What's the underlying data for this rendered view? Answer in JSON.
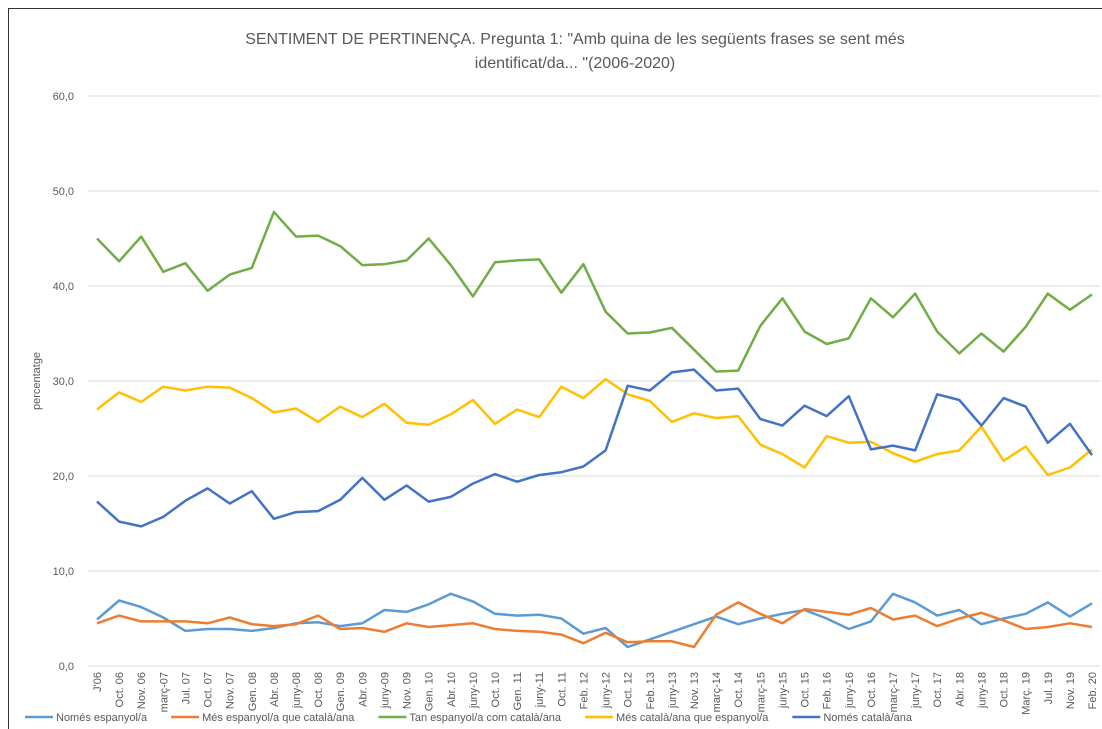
{
  "chart_data": {
    "type": "line",
    "title": [
      "SENTIMENT DE PERTINENÇA. Pregunta 1: \"Amb quina de les següents frases se sent més",
      "identificat/da... \"(2006-2020)"
    ],
    "ylabel": "percentatge",
    "categories": [
      "J'06",
      "Oct. 06",
      "Nov. 06",
      "març-07",
      "Jul. 07",
      "Oct. 07",
      "Nov. 07",
      "Gen. 08",
      "Abr. 08",
      "juny-08",
      "Oct. 08",
      "Gen. 09",
      "Abr. 09",
      "juny-09",
      "Nov. 09",
      "Gen. 10",
      "Abr. 10",
      "juny-10",
      "Oct. 10",
      "Gen. 11",
      "juny-11",
      "Oct. 11",
      "Feb. 12",
      "juny-12",
      "Oct. 12",
      "Feb. 13",
      "juny-13",
      "Nov. 13",
      "març-14",
      "Oct. 14",
      "març-15",
      "juny-15",
      "Oct. 15",
      "Feb. 16",
      "juny-16",
      "Oct. 16",
      "març-17",
      "juny-17",
      "Oct. 17",
      "Abr. 18",
      "juny-18",
      "Oct. 18",
      "Març. 19",
      "Jul. 19",
      "Nov. 19",
      "Feb. 20"
    ],
    "series": [
      {
        "name": "Només espanyol/a",
        "color": "#5b9bd5",
        "values": [
          4.9,
          6.9,
          6.2,
          5.1,
          3.7,
          3.9,
          3.9,
          3.7,
          4.0,
          4.5,
          4.6,
          4.2,
          4.5,
          5.9,
          5.7,
          6.5,
          7.6,
          6.8,
          5.5,
          5.3,
          5.4,
          5.0,
          3.4,
          4.0,
          2.0,
          2.8,
          3.6,
          4.4,
          5.2,
          4.4,
          5.0,
          5.5,
          5.9,
          5.0,
          3.9,
          4.7,
          7.6,
          6.7,
          5.3,
          5.9,
          4.4,
          5.0,
          5.5,
          6.7,
          5.2,
          6.6
        ]
      },
      {
        "name": "Més espanyol/a que català/ana",
        "color": "#ed7d31",
        "values": [
          4.5,
          5.3,
          4.7,
          4.7,
          4.7,
          4.5,
          5.1,
          4.4,
          4.2,
          4.4,
          5.3,
          3.9,
          4.0,
          3.6,
          4.5,
          4.1,
          4.3,
          4.5,
          3.9,
          3.7,
          3.6,
          3.3,
          2.4,
          3.5,
          2.5,
          2.6,
          2.6,
          2.0,
          5.4,
          6.7,
          5.5,
          4.5,
          6.0,
          5.7,
          5.4,
          6.1,
          4.9,
          5.3,
          4.2,
          5.0,
          5.6,
          4.8,
          3.9,
          4.1,
          4.5,
          4.1
        ]
      },
      {
        "name": "Tan espanyol/a com català/ana",
        "color": "#70ad47",
        "values": [
          45.0,
          42.6,
          45.2,
          41.5,
          42.4,
          39.5,
          41.2,
          41.9,
          47.8,
          45.2,
          45.3,
          44.2,
          42.2,
          42.3,
          42.7,
          45.0,
          42.2,
          38.9,
          42.5,
          42.7,
          42.8,
          39.3,
          42.3,
          37.3,
          35.0,
          35.1,
          35.6,
          33.3,
          31.0,
          31.1,
          35.8,
          38.7,
          35.2,
          33.9,
          34.5,
          38.7,
          36.7,
          39.2,
          35.2,
          32.9,
          35.0,
          33.1,
          35.7,
          39.2,
          37.5,
          39.1
        ]
      },
      {
        "name": "Més català/ana que espanyol/a",
        "color": "#ffc000",
        "values": [
          27.0,
          28.8,
          27.8,
          29.4,
          29.0,
          29.4,
          29.3,
          28.2,
          26.7,
          27.1,
          25.7,
          27.3,
          26.2,
          27.6,
          25.6,
          25.4,
          26.5,
          28.0,
          25.5,
          27.0,
          26.2,
          29.4,
          28.2,
          30.2,
          28.6,
          27.9,
          25.7,
          26.6,
          26.1,
          26.3,
          23.3,
          22.3,
          20.9,
          24.2,
          23.5,
          23.6,
          22.4,
          21.5,
          22.3,
          22.7,
          25.2,
          21.6,
          23.1,
          20.1,
          20.9,
          22.8
        ]
      },
      {
        "name": "Només català/ana",
        "color": "#4472c4",
        "values": [
          17.3,
          15.2,
          14.7,
          15.7,
          17.4,
          18.7,
          17.1,
          18.4,
          15.5,
          16.2,
          16.3,
          17.5,
          19.8,
          17.5,
          19.0,
          17.3,
          17.8,
          19.2,
          20.2,
          19.4,
          20.1,
          20.4,
          21.0,
          22.7,
          29.5,
          29.0,
          30.9,
          31.2,
          29.0,
          29.2,
          26.0,
          25.3,
          27.4,
          26.3,
          28.4,
          22.8,
          23.2,
          22.7,
          28.6,
          28.0,
          25.3,
          28.2,
          27.3,
          23.5,
          25.5,
          22.2
        ]
      }
    ],
    "ylim": [
      0,
      60
    ],
    "yticks": [
      {
        "value": 0,
        "label": "0,0"
      },
      {
        "value": 10,
        "label": "10,0"
      },
      {
        "value": 20,
        "label": "20,0"
      },
      {
        "value": 30,
        "label": "30,0"
      },
      {
        "value": 40,
        "label": "40,0"
      },
      {
        "value": 50,
        "label": "50,0"
      },
      {
        "value": 60,
        "label": "60,0"
      }
    ],
    "grid": true,
    "legend": "bottom"
  }
}
